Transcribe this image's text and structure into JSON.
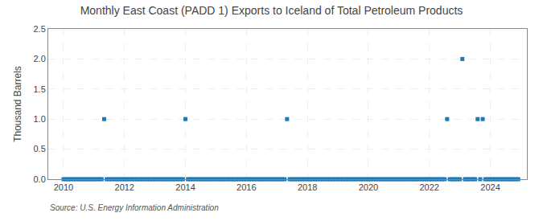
{
  "chart_data": {
    "type": "scatter",
    "title": "Monthly East Coast (PADD 1) Exports to Iceland of Total Petroleum Products",
    "y_label": "Thousand Barrels",
    "annotations": [
      "Source: U.S. Energy Information Administration"
    ],
    "marker": "square",
    "grid": true,
    "xlim": [
      2009.5,
      2025.2
    ],
    "xticks": [
      2010,
      2012,
      2014,
      2016,
      2018,
      2020,
      2022,
      2024
    ],
    "ylim": [
      0.0,
      2.5
    ],
    "yticks": [
      {
        "value": 0.0,
        "label": "0.0"
      },
      {
        "value": 0.5,
        "label": "0.5"
      },
      {
        "value": 1.0,
        "label": "1.0"
      },
      {
        "value": 1.5,
        "label": "1.5"
      },
      {
        "value": 2.0,
        "label": "2.0"
      },
      {
        "value": 2.5,
        "label": "2.5"
      }
    ],
    "x": [
      2010.0,
      2010.083,
      2010.167,
      2010.25,
      2010.333,
      2010.417,
      2010.5,
      2010.583,
      2010.667,
      2010.75,
      2010.833,
      2010.917,
      2011.0,
      2011.083,
      2011.167,
      2011.25,
      2011.333,
      2011.417,
      2011.5,
      2011.583,
      2011.667,
      2011.75,
      2011.833,
      2011.917,
      2012.0,
      2012.083,
      2012.167,
      2012.25,
      2012.333,
      2012.417,
      2012.5,
      2012.583,
      2012.667,
      2012.75,
      2012.833,
      2012.917,
      2013.0,
      2013.083,
      2013.167,
      2013.25,
      2013.333,
      2013.417,
      2013.5,
      2013.583,
      2013.667,
      2013.75,
      2013.833,
      2013.917,
      2014.0,
      2014.083,
      2014.167,
      2014.25,
      2014.333,
      2014.417,
      2014.5,
      2014.583,
      2014.667,
      2014.75,
      2014.833,
      2014.917,
      2015.0,
      2015.083,
      2015.167,
      2015.25,
      2015.333,
      2015.417,
      2015.5,
      2015.583,
      2015.667,
      2015.75,
      2015.833,
      2015.917,
      2016.0,
      2016.083,
      2016.167,
      2016.25,
      2016.333,
      2016.417,
      2016.5,
      2016.583,
      2016.667,
      2016.75,
      2016.833,
      2016.917,
      2017.0,
      2017.083,
      2017.167,
      2017.25,
      2017.333,
      2017.417,
      2017.5,
      2017.583,
      2017.667,
      2017.75,
      2017.833,
      2017.917,
      2018.0,
      2018.083,
      2018.167,
      2018.25,
      2018.333,
      2018.417,
      2018.5,
      2018.583,
      2018.667,
      2018.75,
      2018.833,
      2018.917,
      2019.0,
      2019.083,
      2019.167,
      2019.25,
      2019.333,
      2019.417,
      2019.5,
      2019.583,
      2019.667,
      2019.75,
      2019.833,
      2019.917,
      2020.0,
      2020.083,
      2020.167,
      2020.25,
      2020.333,
      2020.417,
      2020.5,
      2020.583,
      2020.667,
      2020.75,
      2020.833,
      2020.917,
      2021.0,
      2021.083,
      2021.167,
      2021.25,
      2021.333,
      2021.417,
      2021.5,
      2021.583,
      2021.667,
      2021.75,
      2021.833,
      2021.917,
      2022.0,
      2022.083,
      2022.167,
      2022.25,
      2022.333,
      2022.417,
      2022.5,
      2022.583,
      2022.667,
      2022.75,
      2022.833,
      2022.917,
      2023.0,
      2023.083,
      2023.167,
      2023.25,
      2023.333,
      2023.417,
      2023.5,
      2023.583,
      2023.667,
      2023.75,
      2023.833,
      2023.917,
      2024.0,
      2024.083,
      2024.167,
      2024.25,
      2024.333,
      2024.417,
      2024.5,
      2024.583,
      2024.667,
      2024.75,
      2024.833,
      2024.917
    ],
    "values": [
      0.0,
      0.0,
      0.0,
      0.0,
      0.0,
      0.0,
      0.0,
      0.0,
      0.0,
      0.0,
      0.0,
      0.0,
      0.0,
      0.0,
      0.0,
      0.0,
      1.0,
      0.0,
      0.0,
      0.0,
      0.0,
      0.0,
      0.0,
      0.0,
      0.0,
      0.0,
      0.0,
      0.0,
      0.0,
      0.0,
      0.0,
      0.0,
      0.0,
      0.0,
      0.0,
      0.0,
      0.0,
      0.0,
      0.0,
      0.0,
      0.0,
      0.0,
      0.0,
      0.0,
      0.0,
      0.0,
      0.0,
      0.0,
      1.0,
      0.0,
      0.0,
      0.0,
      0.0,
      0.0,
      0.0,
      0.0,
      0.0,
      0.0,
      0.0,
      0.0,
      0.0,
      0.0,
      0.0,
      0.0,
      0.0,
      0.0,
      0.0,
      0.0,
      0.0,
      0.0,
      0.0,
      0.0,
      0.0,
      0.0,
      0.0,
      0.0,
      0.0,
      0.0,
      0.0,
      0.0,
      0.0,
      0.0,
      0.0,
      0.0,
      0.0,
      0.0,
      0.0,
      0.0,
      1.0,
      0.0,
      0.0,
      0.0,
      0.0,
      0.0,
      0.0,
      0.0,
      0.0,
      0.0,
      0.0,
      0.0,
      0.0,
      0.0,
      0.0,
      0.0,
      0.0,
      0.0,
      0.0,
      0.0,
      0.0,
      0.0,
      0.0,
      0.0,
      0.0,
      0.0,
      0.0,
      0.0,
      0.0,
      0.0,
      0.0,
      0.0,
      0.0,
      0.0,
      0.0,
      0.0,
      0.0,
      0.0,
      0.0,
      0.0,
      0.0,
      0.0,
      0.0,
      0.0,
      0.0,
      0.0,
      0.0,
      0.0,
      0.0,
      0.0,
      0.0,
      0.0,
      0.0,
      0.0,
      0.0,
      0.0,
      0.0,
      0.0,
      0.0,
      0.0,
      0.0,
      0.0,
      0.0,
      1.0,
      0.0,
      0.0,
      0.0,
      0.0,
      0.0,
      2.0,
      0.0,
      0.0,
      0.0,
      0.0,
      0.0,
      1.0,
      0.0,
      1.0,
      0.0,
      0.0,
      0.0,
      0.0,
      0.0,
      0.0,
      0.0,
      0.0,
      0.0,
      0.0,
      0.0,
      0.0,
      0.0,
      0.0
    ]
  }
}
